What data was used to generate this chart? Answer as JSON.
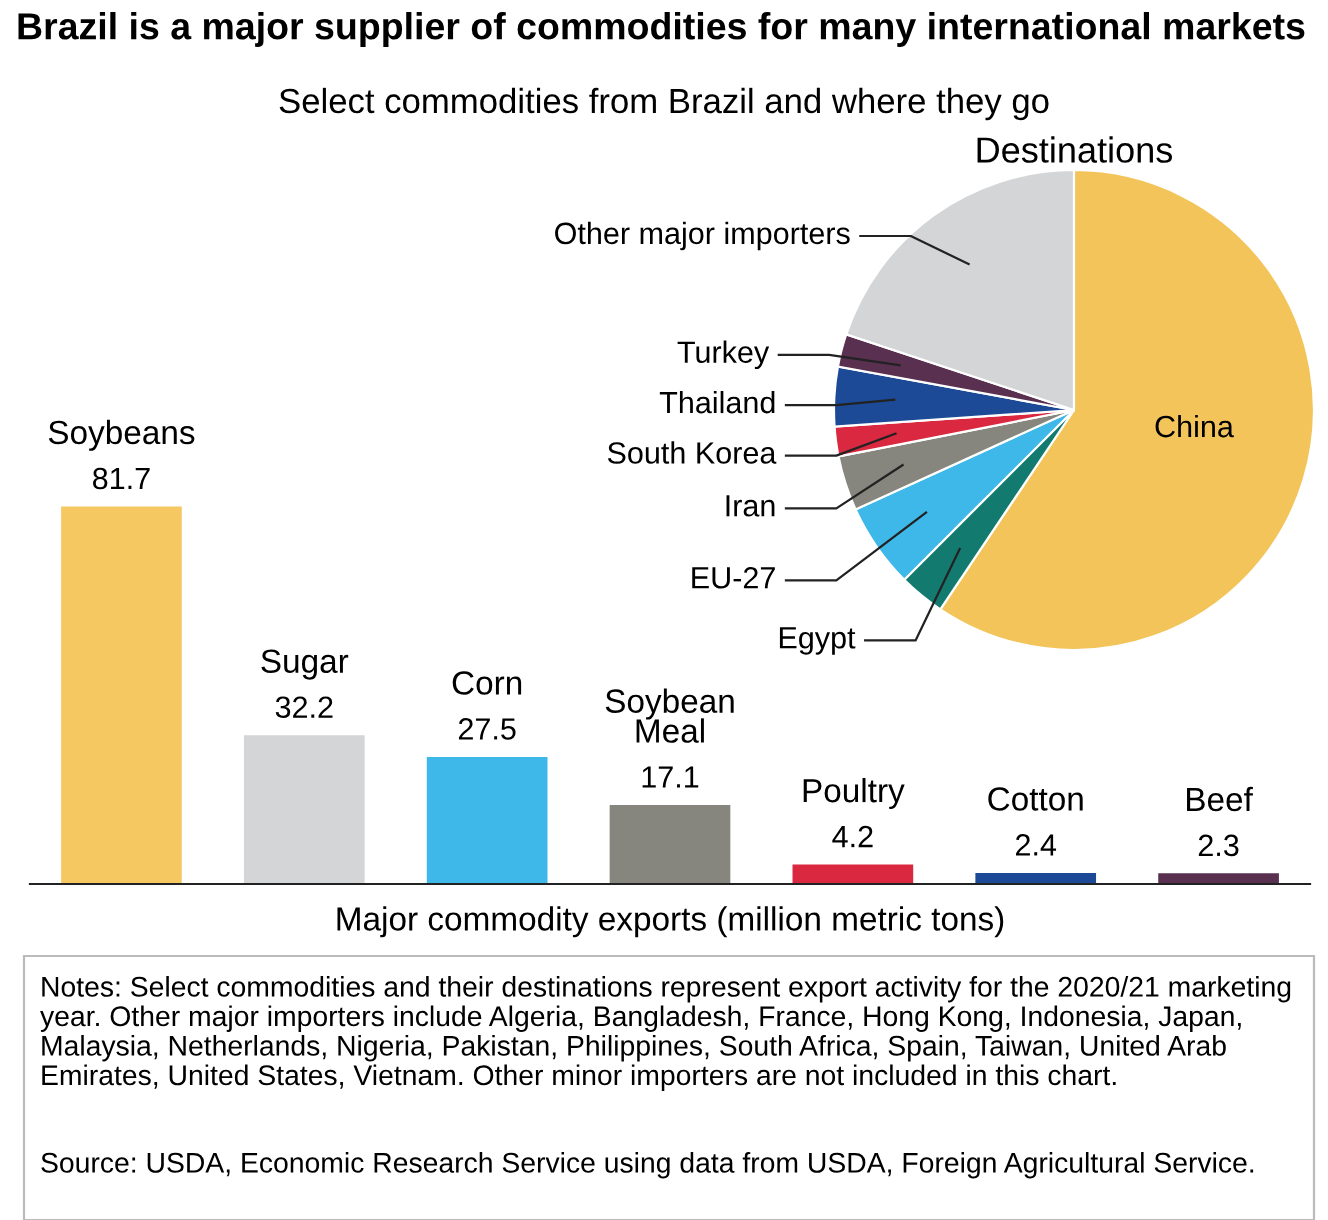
{
  "chart_data": [
    {
      "type": "bar",
      "title": "Brazil is a major supplier of commodities for many international markets",
      "subtitle": "Select commodities from Brazil and where they go",
      "xlabel": "Major commodity exports (million metric tons)",
      "categories": [
        "Soybeans",
        "Sugar",
        "Corn",
        "Soybean\nMeal",
        "Poultry",
        "Cotton",
        "Beef"
      ],
      "values": [
        81.7,
        32.2,
        27.5,
        17.1,
        4.2,
        2.4,
        2.3
      ],
      "colors": [
        "#f5c862",
        "#d3d5d6",
        "#3db8e8",
        "#86867e",
        "#d9283f",
        "#1d4a96",
        "#5a3050"
      ],
      "data_labels": true,
      "annotations": [
        "Notes: Select commodities and their destinations represent export activity for the 2020/21 marketing year. Other major importers include Algeria, Bangladesh, France, Hong Kong, Indonesia, Japan, Malaysia, Netherlands, Nigeria, Pakistan, Philippines, South Africa, Spain, Taiwan, United Arab Emirates, United States, Vietnam. Other minor importers are not included in this chart.",
        "Source: USDA, Economic Research Service using data from USDA, Foreign Agricultural Service."
      ]
    },
    {
      "type": "pie",
      "title": "Destinations",
      "categories": [
        "China",
        "Egypt",
        "EU-27",
        "Iran",
        "South Korea",
        "Thailand",
        "Turkey",
        "Other major importers"
      ],
      "values": [
        59.4,
        3.1,
        5.7,
        3.7,
        2.0,
        4.0,
        2.2,
        19.9
      ],
      "colors": [
        "#f2c45a",
        "#137a70",
        "#3db8e8",
        "#86867e",
        "#d9283f",
        "#1d4a96",
        "#5a3050",
        "#d3d5d6"
      ]
    }
  ]
}
